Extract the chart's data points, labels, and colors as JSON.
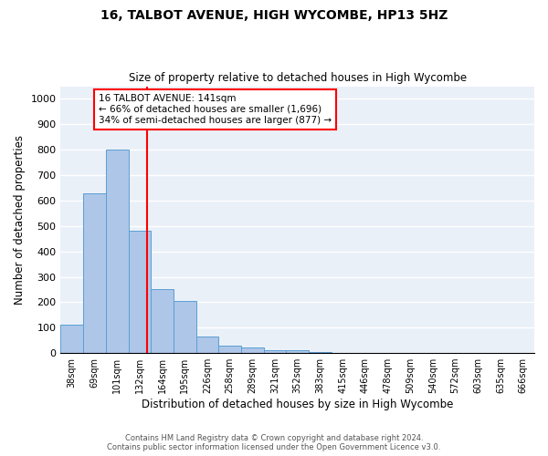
{
  "title": "16, TALBOT AVENUE, HIGH WYCOMBE, HP13 5HZ",
  "subtitle": "Size of property relative to detached houses in High Wycombe",
  "xlabel": "Distribution of detached houses by size in High Wycombe",
  "ylabel": "Number of detached properties",
  "bar_labels": [
    "38sqm",
    "69sqm",
    "101sqm",
    "132sqm",
    "164sqm",
    "195sqm",
    "226sqm",
    "258sqm",
    "289sqm",
    "321sqm",
    "352sqm",
    "383sqm",
    "415sqm",
    "446sqm",
    "478sqm",
    "509sqm",
    "540sqm",
    "572sqm",
    "603sqm",
    "635sqm",
    "666sqm"
  ],
  "bar_values": [
    110,
    630,
    800,
    480,
    250,
    205,
    65,
    28,
    22,
    12,
    10,
    5,
    0,
    0,
    0,
    0,
    0,
    0,
    0,
    0,
    0
  ],
  "bar_color": "#aec6e8",
  "bar_edge_color": "#5a9fd4",
  "bar_width": 1.0,
  "vline_x": 3.35,
  "vline_color": "red",
  "annotation_text": "16 TALBOT AVENUE: 141sqm\n← 66% of detached houses are smaller (1,696)\n34% of semi-detached houses are larger (877) →",
  "annotation_box_color": "white",
  "annotation_box_edge_color": "red",
  "ylim": [
    0,
    1050
  ],
  "yticks": [
    0,
    100,
    200,
    300,
    400,
    500,
    600,
    700,
    800,
    900,
    1000
  ],
  "background_color": "#eaf0f8",
  "grid_color": "white",
  "footer_line1": "Contains HM Land Registry data © Crown copyright and database right 2024.",
  "footer_line2": "Contains public sector information licensed under the Open Government Licence v3.0."
}
